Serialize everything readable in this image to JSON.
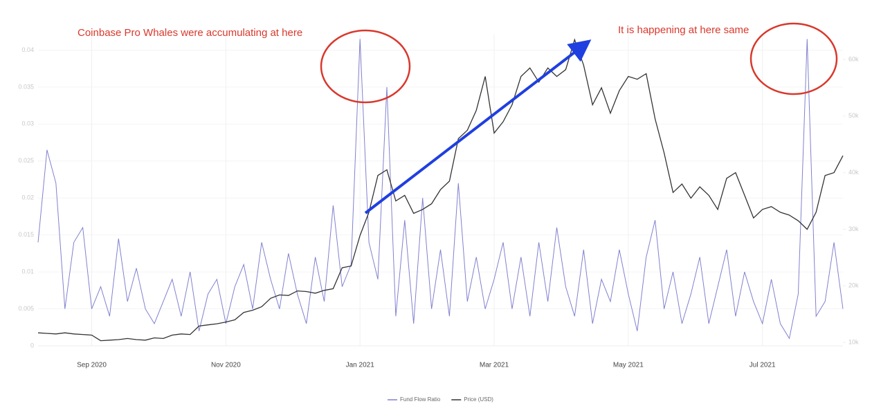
{
  "chart_data": {
    "type": "line",
    "annotations": [
      "Coinbase Pro Whales were accumulating at here",
      "It is happening at here same"
    ],
    "categories": [
      null,
      null,
      null,
      null,
      null,
      null,
      "Sep 2020",
      null,
      null,
      null,
      null,
      null,
      null,
      null,
      null,
      null,
      null,
      null,
      null,
      null,
      null,
      "Nov 2020",
      null,
      null,
      null,
      null,
      null,
      null,
      null,
      null,
      null,
      null,
      null,
      null,
      null,
      null,
      "Jan 2021",
      null,
      null,
      null,
      null,
      null,
      null,
      null,
      null,
      null,
      null,
      null,
      null,
      null,
      null,
      "Mar 2021",
      null,
      null,
      null,
      null,
      null,
      null,
      null,
      null,
      null,
      null,
      null,
      null,
      null,
      null,
      "May 2021",
      null,
      null,
      null,
      null,
      null,
      null,
      null,
      null,
      null,
      null,
      null,
      null,
      null,
      null,
      "Jul 2021",
      null,
      null,
      null,
      null,
      null,
      null,
      null,
      null,
      null
    ],
    "series": [
      {
        "name": "Fund Flow Ratio",
        "color": "#8080d0",
        "axis": "y",
        "values": [
          0.014,
          0.0265,
          0.022,
          0.005,
          0.014,
          0.016,
          0.005,
          0.008,
          0.004,
          0.0145,
          0.006,
          0.0105,
          0.005,
          0.003,
          0.006,
          0.009,
          0.004,
          0.01,
          0.002,
          0.007,
          0.009,
          0.003,
          0.008,
          0.011,
          0.005,
          0.014,
          0.009,
          0.005,
          0.0125,
          0.007,
          0.003,
          0.012,
          0.006,
          0.019,
          0.008,
          0.011,
          0.0415,
          0.014,
          0.009,
          0.035,
          0.004,
          0.017,
          0.003,
          0.02,
          0.005,
          0.013,
          0.004,
          0.022,
          0.006,
          0.012,
          0.005,
          0.009,
          0.014,
          0.005,
          0.012,
          0.004,
          0.014,
          0.006,
          0.016,
          0.008,
          0.004,
          0.013,
          0.003,
          0.009,
          0.006,
          0.013,
          0.007,
          0.002,
          0.012,
          0.017,
          0.005,
          0.01,
          0.003,
          0.007,
          0.012,
          0.003,
          0.008,
          0.013,
          0.004,
          0.01,
          0.006,
          0.003,
          0.009,
          0.003,
          0.001,
          0.007,
          0.0415,
          0.004,
          0.006,
          0.014,
          0.005
        ]
      },
      {
        "name": "Price (USD)",
        "color": "#333333",
        "axis": "y2",
        "values": [
          11700,
          11600,
          11500,
          11700,
          11500,
          11400,
          11300,
          10300,
          10400,
          10500,
          10700,
          10500,
          10400,
          10800,
          10700,
          11300,
          11500,
          11400,
          12900,
          13100,
          13300,
          13600,
          14000,
          15300,
          15700,
          16300,
          17800,
          18400,
          18300,
          19100,
          19000,
          18700,
          19200,
          19500,
          23200,
          23500,
          28900,
          33000,
          39500,
          40500,
          35000,
          36000,
          32800,
          33500,
          34500,
          37000,
          38500,
          46000,
          47500,
          51000,
          57000,
          47000,
          49000,
          52000,
          57000,
          58500,
          56000,
          58500,
          57000,
          58200,
          63500,
          59000,
          52000,
          55000,
          50500,
          54500,
          57000,
          56500,
          57500,
          49500,
          43500,
          36500,
          38000,
          35500,
          37500,
          36000,
          33500,
          39000,
          40000,
          36000,
          32000,
          33500,
          34000,
          33000,
          32500,
          31500,
          30000,
          33000,
          39500,
          40000,
          43000
        ]
      }
    ],
    "ylim": [
      0,
      0.0421
    ],
    "yticks": [
      0,
      0.005,
      0.01,
      0.015,
      0.02,
      0.025,
      0.03,
      0.035,
      0.04
    ],
    "y2lim": [
      9400,
      64400
    ],
    "y2ticks": [
      {
        "value": 10000,
        "label": "10k"
      },
      {
        "value": 20000,
        "label": "20k"
      },
      {
        "value": 30000,
        "label": "30k"
      },
      {
        "value": 40000,
        "label": "40k"
      },
      {
        "value": 50000,
        "label": "50k"
      },
      {
        "value": 60000,
        "label": "60k"
      }
    ],
    "grid": true,
    "legend": "bottom"
  }
}
